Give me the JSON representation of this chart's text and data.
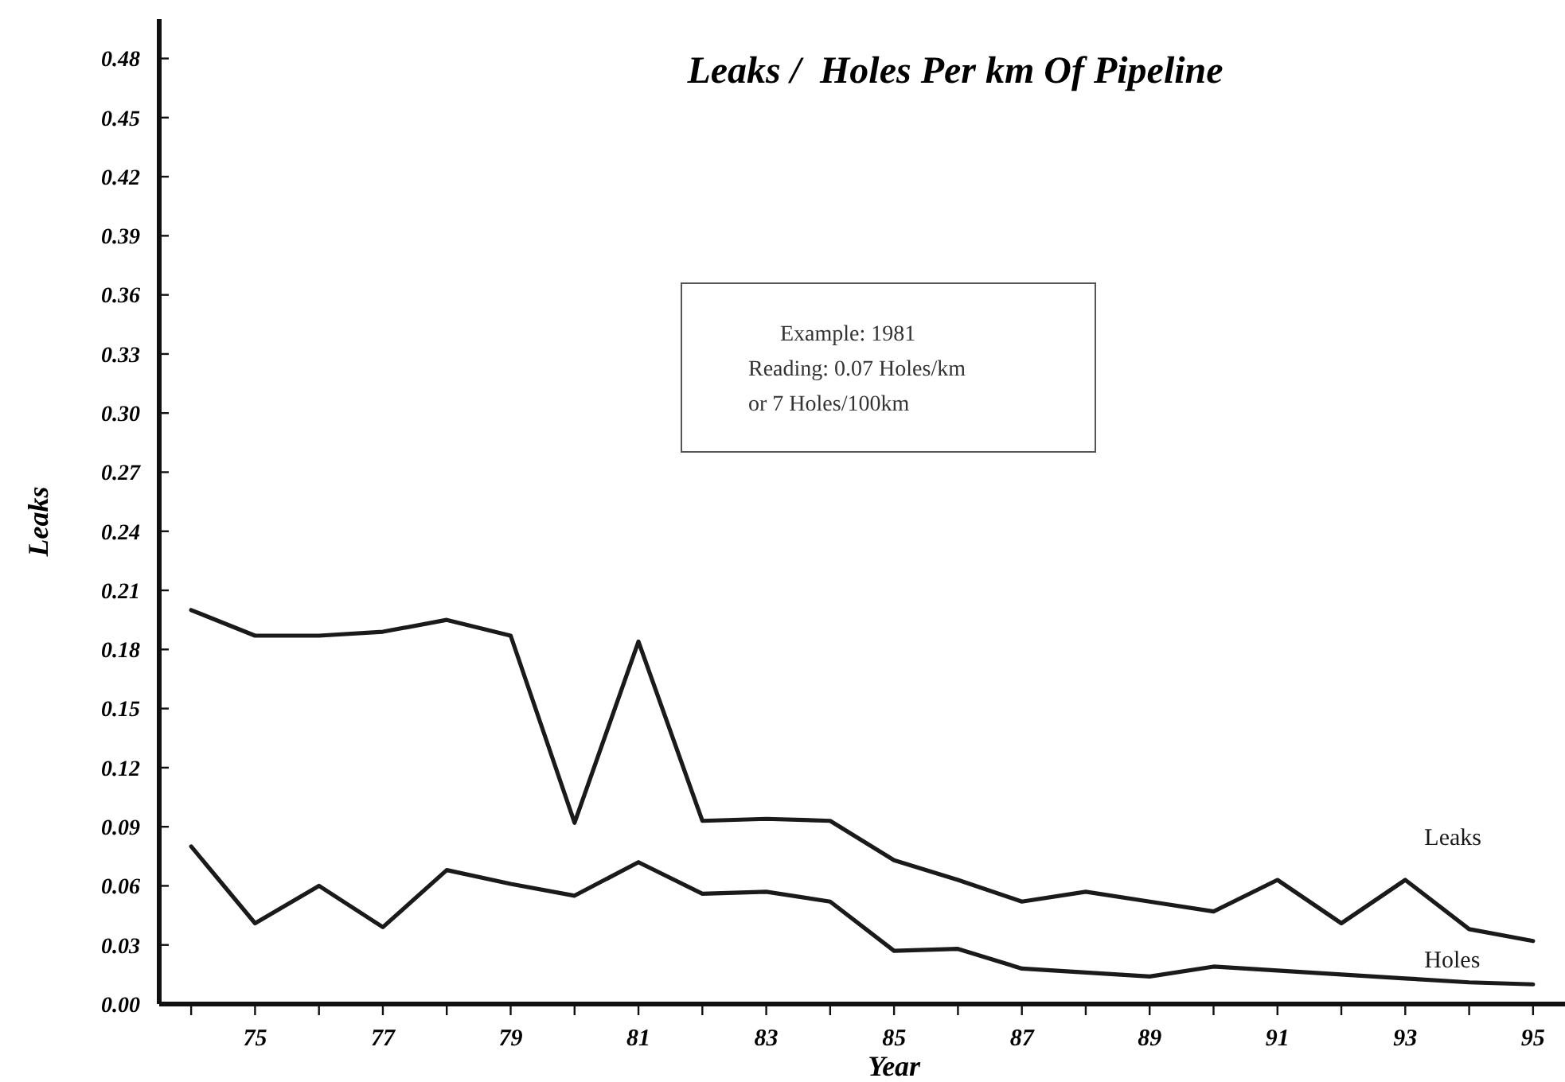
{
  "chart_data": {
    "type": "line",
    "title": "Leaks /  Holes Per km Of Pipeline",
    "xlabel": "Year",
    "ylabel": "Leaks",
    "x": [
      74,
      75,
      76,
      77,
      78,
      79,
      80,
      81,
      82,
      83,
      84,
      85,
      86,
      87,
      88,
      89,
      90,
      91,
      92,
      93,
      94,
      95
    ],
    "series": [
      {
        "name": "Leaks",
        "color": "#1a1a1a",
        "values": [
          0.2,
          0.187,
          0.187,
          0.189,
          0.195,
          0.187,
          0.092,
          0.184,
          0.093,
          0.094,
          0.093,
          0.073,
          0.063,
          0.052,
          0.057,
          0.052,
          0.047,
          0.063,
          0.041,
          0.063,
          0.038,
          0.032
        ]
      },
      {
        "name": "Holes",
        "color": "#1a1a1a",
        "values": [
          0.08,
          0.041,
          0.06,
          0.039,
          0.068,
          0.061,
          0.055,
          0.072,
          0.056,
          0.057,
          0.052,
          0.027,
          0.028,
          0.018,
          0.016,
          0.014,
          0.019,
          0.017,
          0.015,
          0.013,
          0.011,
          0.01
        ]
      }
    ],
    "xlim": [
      73.5,
      95.5
    ],
    "xticks": [
      {
        "value": 74,
        "label": null
      },
      75,
      {
        "value": 76,
        "label": null
      },
      77,
      {
        "value": 78,
        "label": null
      },
      79,
      {
        "value": 80,
        "label": null
      },
      81,
      {
        "value": 82,
        "label": null
      },
      83,
      {
        "value": 84,
        "label": null
      },
      85,
      {
        "value": 86,
        "label": null
      },
      87,
      {
        "value": 88,
        "label": null
      },
      89,
      {
        "value": 90,
        "label": null
      },
      91,
      {
        "value": 92,
        "label": null
      },
      93,
      {
        "value": 94,
        "label": null
      },
      95
    ],
    "ylim": [
      0,
      0.5
    ],
    "yticks": [
      {
        "value": 0,
        "label": "0.00"
      },
      {
        "value": 0.03,
        "label": "0.03"
      },
      {
        "value": 0.06,
        "label": "0.06"
      },
      {
        "value": 0.09,
        "label": "0.09"
      },
      {
        "value": 0.12,
        "label": "0.12"
      },
      {
        "value": 0.15,
        "label": "0.15"
      },
      {
        "value": 0.18,
        "label": "0.18"
      },
      {
        "value": 0.21,
        "label": "0.21"
      },
      {
        "value": 0.24,
        "label": "0.24"
      },
      {
        "value": 0.27,
        "label": "0.27"
      },
      {
        "value": 0.3,
        "label": "0.30"
      },
      {
        "value": 0.33,
        "label": "0.33"
      },
      {
        "value": 0.36,
        "label": "0.36"
      },
      {
        "value": 0.39,
        "label": "0.39"
      },
      {
        "value": 0.42,
        "label": "0.42"
      },
      {
        "value": 0.45,
        "label": "0.45"
      },
      {
        "value": 0.48,
        "label": "0.48"
      }
    ],
    "annotations": [
      "Example:  1981\nReading: 0.07 Holes/km\nor 7 Holes/100km"
    ],
    "grid": false,
    "marker": "none",
    "line_style": "solid"
  }
}
